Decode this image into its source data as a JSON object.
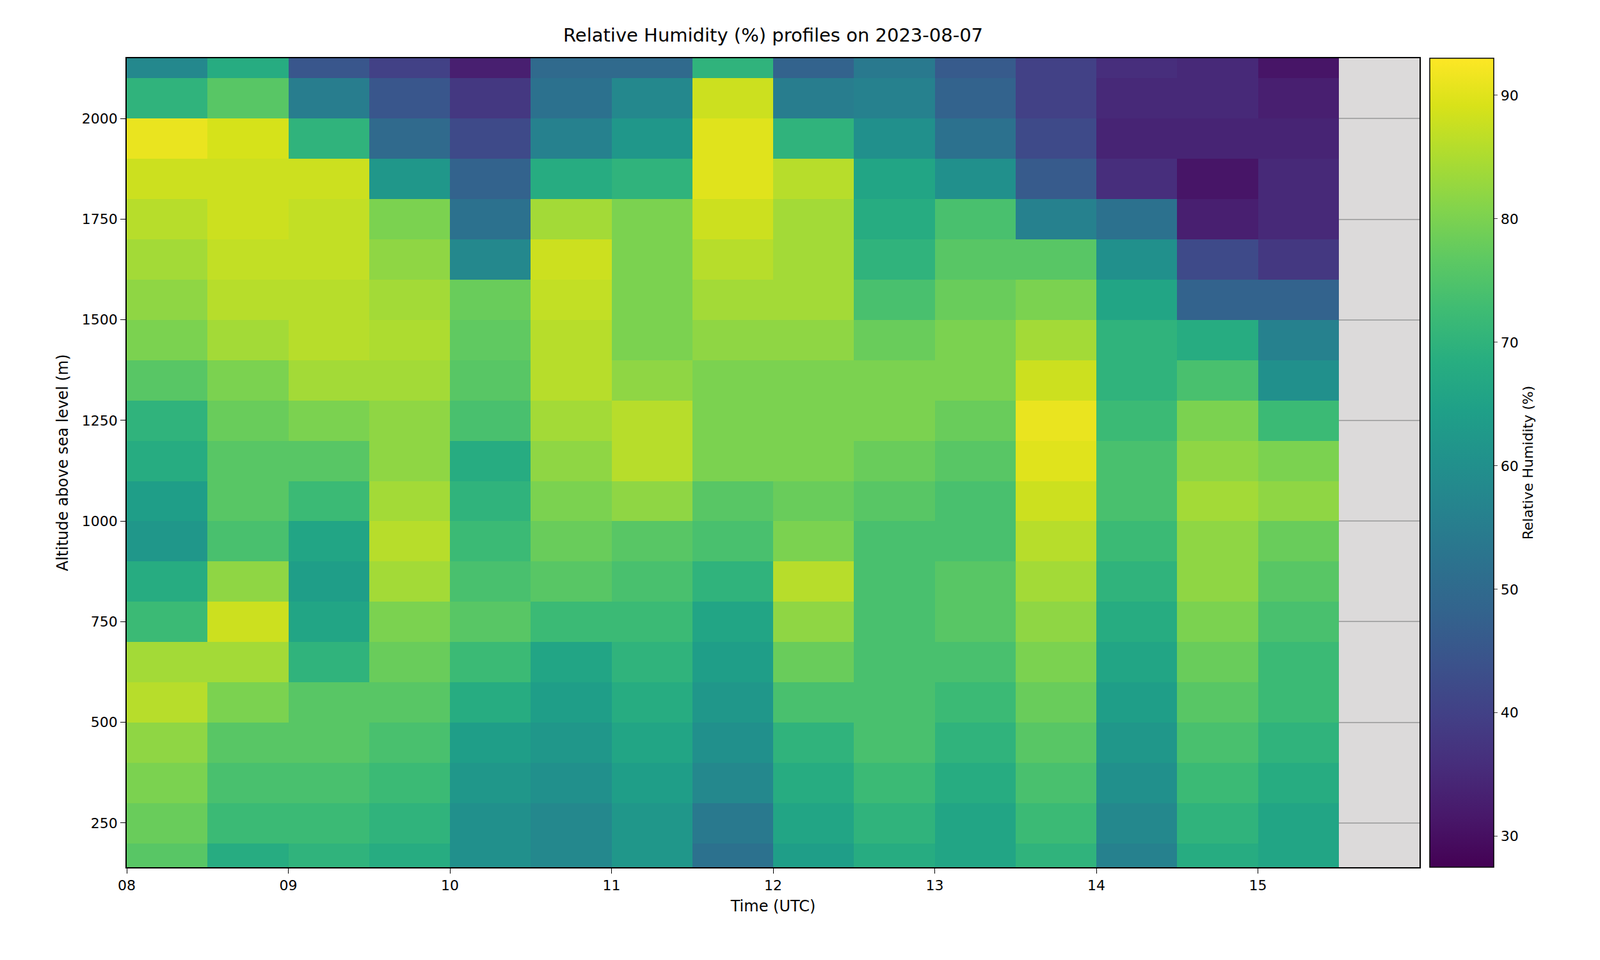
{
  "chart_data": {
    "type": "heatmap",
    "title": "Relative Humidity (%) profiles on 2023-08-07",
    "x_label": "Time (UTC)",
    "y_label": "Altitude above sea level (m)",
    "colorbar_label": "Relative Humidity (%)",
    "x": [
      8.25,
      8.75,
      9.25,
      9.75,
      10.25,
      10.75,
      11.25,
      11.75,
      12.25,
      12.75,
      13.25,
      13.75,
      14.25,
      14.75,
      15.25
    ],
    "y": [
      150,
      250,
      350,
      450,
      550,
      650,
      750,
      850,
      950,
      1050,
      1150,
      1250,
      1350,
      1450,
      1550,
      1650,
      1750,
      1850,
      1950,
      2050,
      2150
    ],
    "cells": [
      [
        76,
        78,
        80,
        82,
        86,
        84,
        72,
        68,
        62,
        64,
        68,
        70,
        76,
        80,
        82,
        84,
        86,
        88,
        91,
        70,
        58
      ],
      [
        68,
        72,
        74,
        76,
        80,
        84,
        88,
        82,
        74,
        76,
        76,
        78,
        80,
        84,
        86,
        87,
        88,
        88,
        89,
        76,
        68
      ],
      [
        70,
        72,
        74,
        76,
        76,
        70,
        66,
        64,
        66,
        72,
        76,
        80,
        84,
        86,
        86,
        87,
        87,
        88,
        70,
        55,
        45
      ],
      [
        68,
        70,
        72,
        74,
        76,
        78,
        80,
        84,
        86,
        84,
        82,
        82,
        84,
        85,
        84,
        82,
        80,
        62,
        50,
        45,
        40
      ],
      [
        60,
        60,
        62,
        64,
        68,
        72,
        76,
        74,
        72,
        70,
        68,
        74,
        76,
        77,
        78,
        58,
        52,
        48,
        42,
        38,
        33
      ],
      [
        58,
        58,
        60,
        62,
        64,
        66,
        72,
        76,
        78,
        80,
        82,
        84,
        86,
        86,
        87,
        88,
        84,
        68,
        56,
        52,
        50
      ],
      [
        62,
        62,
        64,
        66,
        68,
        70,
        72,
        74,
        76,
        82,
        86,
        86,
        82,
        80,
        80,
        80,
        80,
        70,
        62,
        58,
        50
      ],
      [
        52,
        54,
        58,
        60,
        62,
        64,
        66,
        70,
        74,
        76,
        80,
        80,
        80,
        82,
        84,
        86,
        88,
        90,
        90,
        88,
        70
      ],
      [
        64,
        66,
        68,
        70,
        74,
        78,
        82,
        86,
        80,
        78,
        80,
        80,
        80,
        82,
        84,
        84,
        84,
        86,
        70,
        55,
        48
      ],
      [
        68,
        70,
        72,
        74,
        74,
        74,
        74,
        74,
        74,
        76,
        78,
        80,
        80,
        78,
        74,
        70,
        68,
        66,
        60,
        56,
        54
      ],
      [
        66,
        66,
        68,
        70,
        72,
        74,
        76,
        76,
        74,
        74,
        76,
        78,
        80,
        80,
        78,
        76,
        74,
        60,
        52,
        48,
        46
      ],
      [
        70,
        72,
        74,
        76,
        78,
        80,
        82,
        84,
        86,
        88,
        90,
        91,
        88,
        84,
        80,
        76,
        56,
        46,
        42,
        40,
        40
      ],
      [
        56,
        58,
        60,
        62,
        64,
        66,
        68,
        70,
        72,
        74,
        74,
        72,
        70,
        70,
        66,
        60,
        52,
        36,
        34,
        35,
        36
      ],
      [
        68,
        70,
        72,
        74,
        76,
        78,
        80,
        82,
        82,
        84,
        82,
        80,
        74,
        68,
        48,
        42,
        33,
        31,
        34,
        35,
        35
      ],
      [
        66,
        66,
        68,
        70,
        72,
        72,
        74,
        76,
        78,
        82,
        80,
        72,
        60,
        56,
        48,
        38,
        35,
        35,
        34,
        33,
        31
      ]
    ],
    "xlim": [
      8,
      16
    ],
    "xticks": [
      {
        "value": 8,
        "label": "08"
      },
      {
        "value": 9,
        "label": "09"
      },
      {
        "value": 10,
        "label": "10"
      },
      {
        "value": 11,
        "label": "11"
      },
      {
        "value": 12,
        "label": "12"
      },
      {
        "value": 13,
        "label": "13"
      },
      {
        "value": 14,
        "label": "14"
      },
      {
        "value": 15,
        "label": "15"
      }
    ],
    "ylim": [
      140,
      2150
    ],
    "yticks": [
      250,
      500,
      750,
      1000,
      1250,
      1500,
      1750,
      2000
    ],
    "zlim": [
      27.5,
      93
    ],
    "zticks": [
      30,
      40,
      50,
      60,
      70,
      80,
      90
    ],
    "grid": true
  }
}
